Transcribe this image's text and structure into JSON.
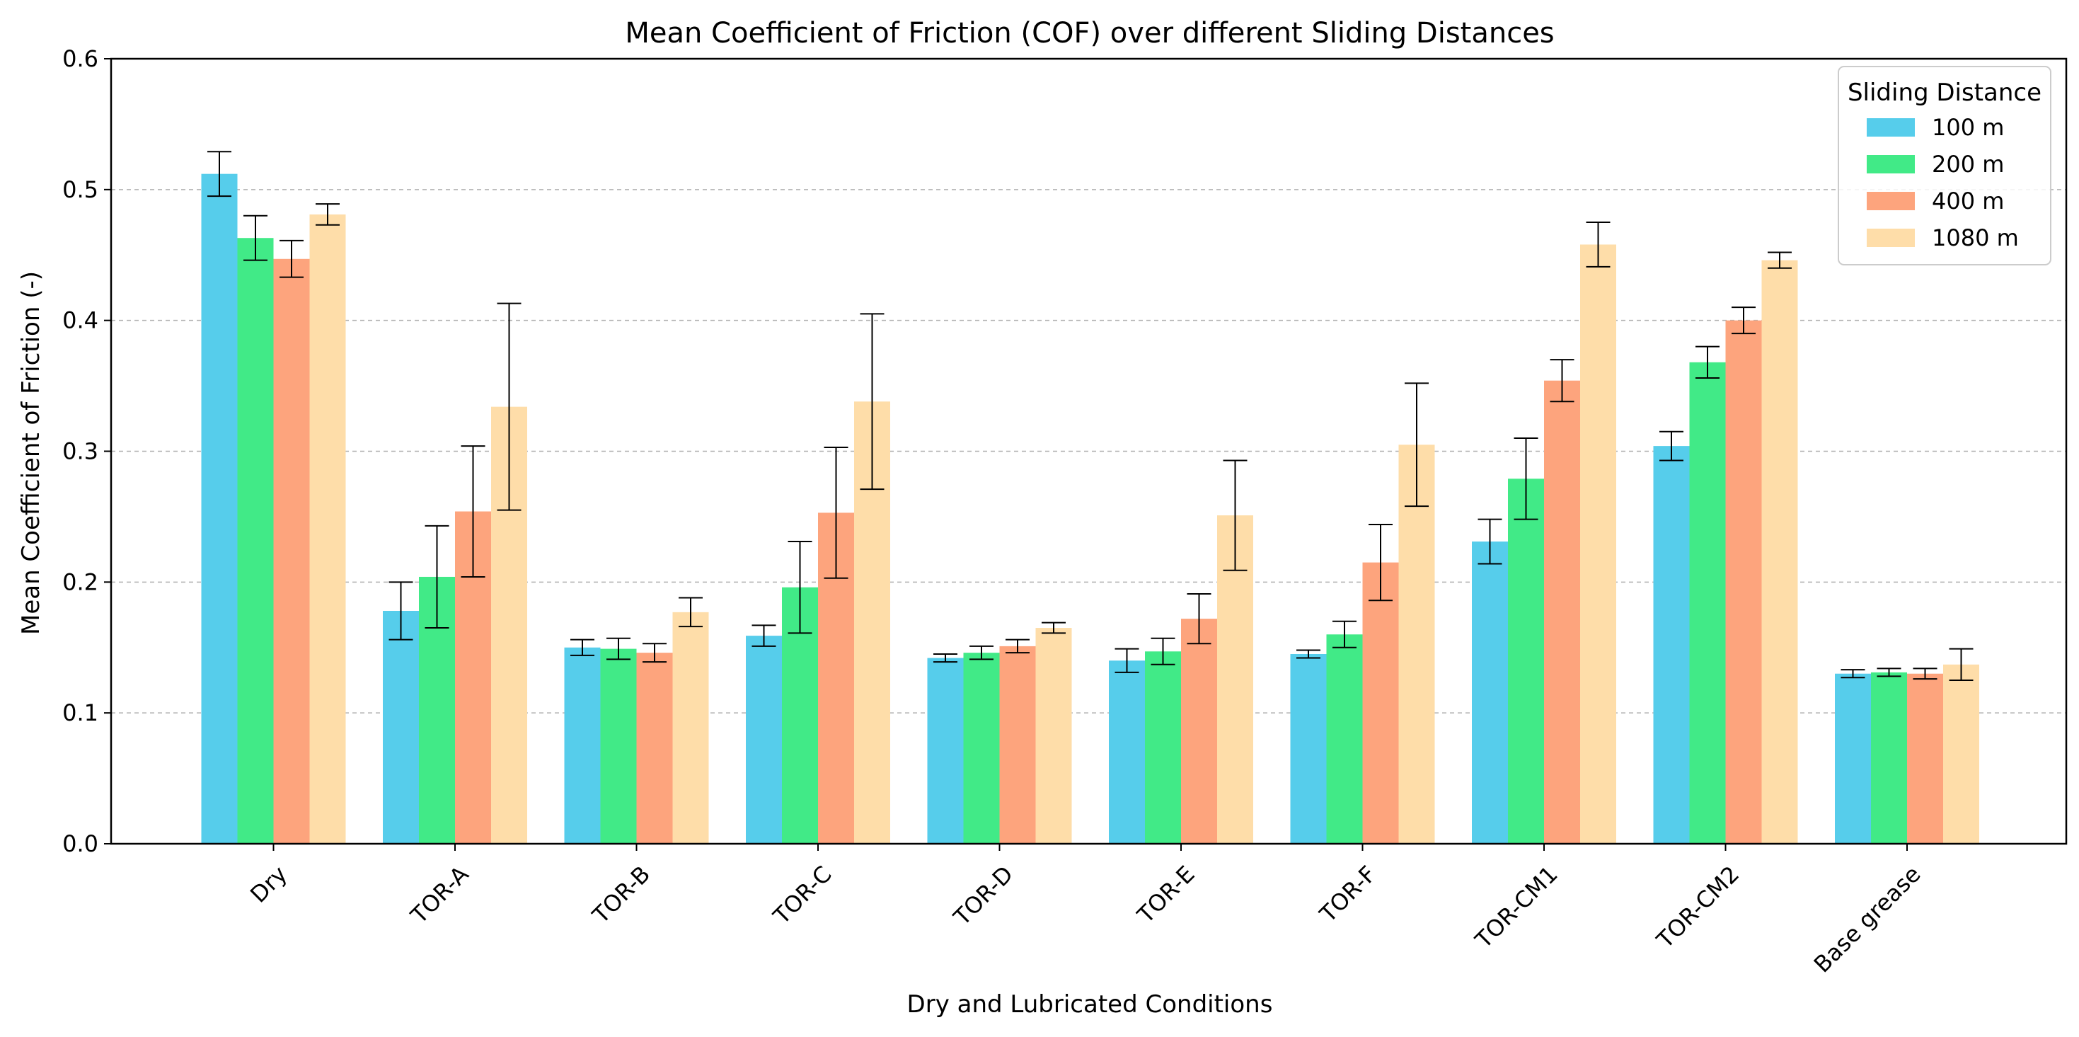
{
  "chart_data": {
    "type": "bar",
    "title": "Mean Coefficient of Friction (COF) over different Sliding Distances",
    "xlabel": "Dry and Lubricated Conditions",
    "ylabel": "Mean Coefficient of Friction (-)",
    "ylim": [
      0,
      0.6
    ],
    "yticks": [
      "0.0",
      "0.1",
      "0.2",
      "0.3",
      "0.4",
      "0.5",
      "0.6"
    ],
    "grid": "horizontal dashed",
    "legend_title": "Sliding Distance",
    "legend_position": "top-right",
    "categories": [
      "Dry",
      "TOR-A",
      "TOR-B",
      "TOR-C",
      "TOR-D",
      "TOR-E",
      "TOR-F",
      "TOR-CM1",
      "TOR-CM2",
      "Base grease"
    ],
    "series": [
      {
        "name": "100 m",
        "color": "#56CDEB",
        "values": [
          0.512,
          0.178,
          0.15,
          0.159,
          0.142,
          0.14,
          0.145,
          0.231,
          0.304,
          0.13
        ],
        "errors": [
          0.017,
          0.022,
          0.006,
          0.008,
          0.003,
          0.009,
          0.003,
          0.017,
          0.011,
          0.003
        ]
      },
      {
        "name": "200 m",
        "color": "#41EA87",
        "values": [
          0.463,
          0.204,
          0.149,
          0.196,
          0.146,
          0.147,
          0.16,
          0.279,
          0.368,
          0.131
        ],
        "errors": [
          0.017,
          0.039,
          0.008,
          0.035,
          0.005,
          0.01,
          0.01,
          0.031,
          0.012,
          0.003
        ]
      },
      {
        "name": "400 m",
        "color": "#FDA47D",
        "values": [
          0.447,
          0.254,
          0.146,
          0.253,
          0.151,
          0.172,
          0.215,
          0.354,
          0.4,
          0.13
        ],
        "errors": [
          0.014,
          0.05,
          0.007,
          0.05,
          0.005,
          0.019,
          0.029,
          0.016,
          0.01,
          0.004
        ]
      },
      {
        "name": "1080 m",
        "color": "#FEDDA9",
        "values": [
          0.481,
          0.334,
          0.177,
          0.338,
          0.165,
          0.251,
          0.305,
          0.458,
          0.446,
          0.137
        ],
        "errors": [
          0.008,
          0.079,
          0.011,
          0.067,
          0.004,
          0.042,
          0.047,
          0.017,
          0.006,
          0.012
        ]
      }
    ]
  }
}
